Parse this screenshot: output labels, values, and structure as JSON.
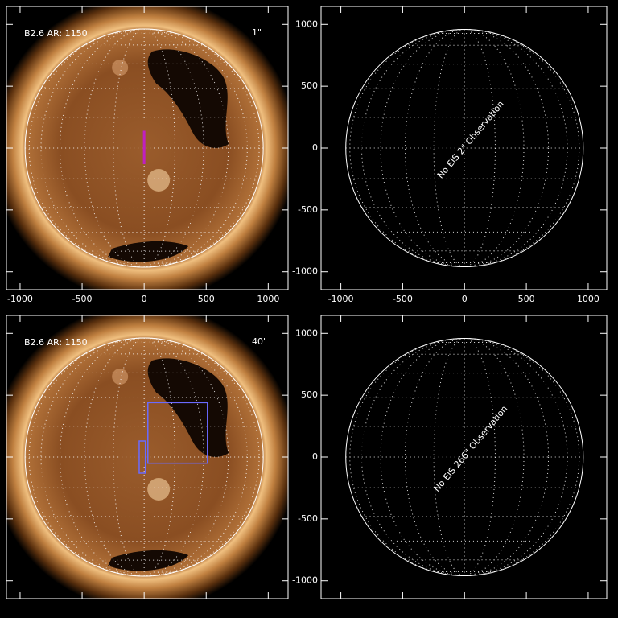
{
  "panels": [
    {
      "label": "B2.6 AR: 1150",
      "resolution": "1\"",
      "resolution_color": "#c020c0",
      "image": "sun",
      "xlim": [
        -1110,
        1160
      ],
      "ylim": [
        -1145,
        1145
      ],
      "xticks": [
        -1000,
        -500,
        0,
        500,
        1000
      ],
      "yticks": [
        -1000,
        -500,
        0,
        500,
        1000
      ],
      "xtick_labels": true,
      "ytick_labels": false
    },
    {
      "message": "No EIS 2\" Observation",
      "image": "grid",
      "xlim": [
        -1160,
        1150
      ],
      "ylim": [
        -1145,
        1145
      ],
      "xticks": [
        -1000,
        -500,
        0,
        500,
        1000
      ],
      "yticks": [
        -1000,
        -500,
        0,
        500,
        1000
      ],
      "xtick_labels": true,
      "ytick_labels": true
    },
    {
      "label": "B2.6 AR: 1150",
      "resolution": "40\"",
      "resolution_color": "#6a6aff",
      "image": "sun",
      "xlim": [
        -1110,
        1160
      ],
      "ylim": [
        -1145,
        1145
      ],
      "xticks": [
        -1000,
        -500,
        0,
        500,
        1000
      ],
      "yticks": [
        -1000,
        -500,
        0,
        500,
        1000
      ],
      "xtick_labels": false,
      "ytick_labels": false
    },
    {
      "message": "No EIS 266\" Observation",
      "image": "grid",
      "xlim": [
        -1160,
        1150
      ],
      "ylim": [
        -1145,
        1145
      ],
      "xticks": [
        -1000,
        -500,
        0,
        500,
        1000
      ],
      "yticks": [
        -1000,
        -500,
        0,
        500,
        1000
      ],
      "xtick_labels": false,
      "ytick_labels": true
    }
  ]
}
